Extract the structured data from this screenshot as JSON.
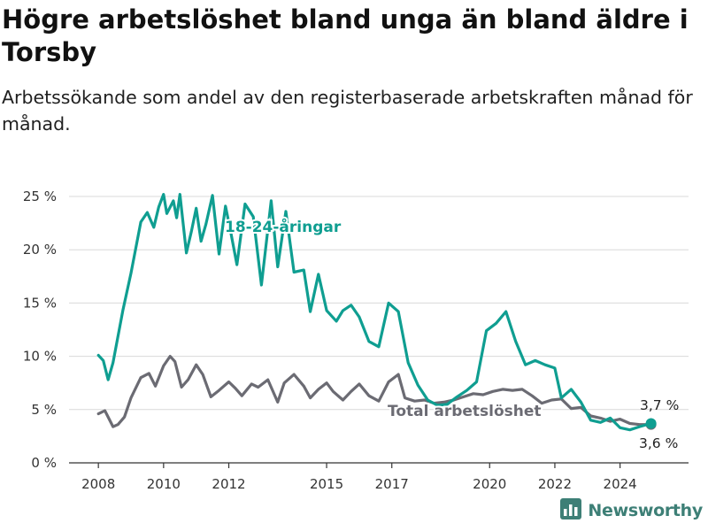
{
  "title": "Högre arbetslöshet bland unga än bland äldre i Torsby",
  "subtitle": "Arbetssökande som andel av den registerbaserade arbetskraften månad för månad.",
  "brand": {
    "name": "Newsworthy",
    "icon": "newsworthy-logo-icon"
  },
  "colors": {
    "youth": "#0f9e91",
    "total": "#6b6b73",
    "grid": "#d9d9d9",
    "axis": "#333333"
  },
  "chart_data": {
    "type": "line",
    "ylim": [
      0,
      26
    ],
    "y_ticks": [
      0,
      5,
      10,
      15,
      20,
      25
    ],
    "y_tick_labels": [
      "0 %",
      "5 %",
      "10 %",
      "15 %",
      "20 %",
      "25 %"
    ],
    "x_ticks": [
      2008,
      2010,
      2012,
      2015,
      2017,
      2020,
      2022,
      2024
    ],
    "x_tick_labels": [
      "2008",
      "2010",
      "2012",
      "2015",
      "2017",
      "2020",
      "2022",
      "2024"
    ],
    "xlim": [
      2007.1,
      2026.1
    ],
    "series": [
      {
        "name": "18-24-åringar",
        "x": [
          2008.0,
          2008.15,
          2008.3,
          2008.45,
          2008.75,
          2009.0,
          2009.3,
          2009.5,
          2009.7,
          2009.85,
          2010.0,
          2010.1,
          2010.3,
          2010.4,
          2010.5,
          2010.7,
          2010.85,
          2011.0,
          2011.15,
          2011.3,
          2011.5,
          2011.7,
          2011.9,
          2012.05,
          2012.25,
          2012.5,
          2012.75,
          2013.0,
          2013.3,
          2013.5,
          2013.75,
          2014.0,
          2014.3,
          2014.5,
          2014.75,
          2015.0,
          2015.3,
          2015.5,
          2015.75,
          2016.0,
          2016.3,
          2016.6,
          2016.9,
          2017.2,
          2017.5,
          2017.8,
          2018.1,
          2018.4,
          2018.7,
          2019.0,
          2019.3,
          2019.6,
          2019.9,
          2020.2,
          2020.5,
          2020.8,
          2021.1,
          2021.4,
          2021.7,
          2022.0,
          2022.2,
          2022.5,
          2022.8,
          2023.1,
          2023.4,
          2023.7,
          2024.0,
          2024.3,
          2024.6,
          2024.95
        ],
        "values": [
          10.1,
          9.6,
          7.8,
          9.4,
          14.3,
          17.8,
          22.6,
          23.5,
          22.1,
          24.0,
          25.2,
          23.4,
          24.6,
          23.0,
          25.2,
          19.7,
          21.7,
          23.9,
          20.8,
          22.4,
          25.1,
          19.6,
          24.1,
          21.8,
          18.6,
          24.3,
          23.1,
          16.7,
          24.6,
          18.4,
          23.6,
          17.9,
          18.1,
          14.2,
          17.7,
          14.3,
          13.3,
          14.3,
          14.8,
          13.7,
          11.4,
          10.9,
          15.0,
          14.2,
          9.4,
          7.3,
          5.9,
          5.4,
          5.5,
          6.2,
          6.8,
          7.6,
          12.4,
          13.1,
          14.2,
          11.4,
          9.2,
          9.6,
          9.2,
          8.9,
          6.1,
          6.9,
          5.7,
          4.0,
          3.8,
          4.2,
          3.3,
          3.1,
          3.4,
          3.7
        ]
      },
      {
        "name": "Total arbetslöshet",
        "x": [
          2008.0,
          2008.2,
          2008.45,
          2008.6,
          2008.8,
          2009.0,
          2009.3,
          2009.55,
          2009.75,
          2010.0,
          2010.2,
          2010.35,
          2010.55,
          2010.75,
          2011.0,
          2011.2,
          2011.45,
          2011.7,
          2012.0,
          2012.2,
          2012.4,
          2012.7,
          2012.9,
          2013.2,
          2013.5,
          2013.7,
          2014.0,
          2014.3,
          2014.5,
          2014.75,
          2015.0,
          2015.2,
          2015.5,
          2015.75,
          2016.0,
          2016.3,
          2016.6,
          2016.9,
          2017.2,
          2017.4,
          2017.7,
          2018.0,
          2018.3,
          2018.6,
          2018.9,
          2019.2,
          2019.5,
          2019.8,
          2020.1,
          2020.4,
          2020.7,
          2021.0,
          2021.3,
          2021.6,
          2021.9,
          2022.2,
          2022.5,
          2022.8,
          2023.1,
          2023.4,
          2023.7,
          2024.0,
          2024.3,
          2024.6,
          2024.95
        ],
        "values": [
          4.6,
          4.9,
          3.4,
          3.6,
          4.3,
          6.1,
          8.0,
          8.4,
          7.2,
          9.1,
          10.0,
          9.5,
          7.1,
          7.8,
          9.2,
          8.3,
          6.2,
          6.8,
          7.6,
          7.0,
          6.3,
          7.4,
          7.1,
          7.8,
          5.7,
          7.5,
          8.3,
          7.2,
          6.1,
          6.9,
          7.5,
          6.7,
          5.9,
          6.7,
          7.4,
          6.3,
          5.8,
          7.6,
          8.3,
          6.1,
          5.8,
          5.9,
          5.6,
          5.7,
          5.9,
          6.2,
          6.5,
          6.4,
          6.7,
          6.9,
          6.8,
          6.9,
          6.3,
          5.6,
          5.9,
          6.0,
          5.1,
          5.2,
          4.4,
          4.2,
          3.9,
          4.1,
          3.7,
          3.6,
          3.6
        ]
      }
    ],
    "annotations": {
      "youth_label": "18-24-åringar",
      "total_label": "Total arbetslöshet",
      "youth_end_value": "3,7 %",
      "total_end_value": "3,6 %"
    }
  }
}
